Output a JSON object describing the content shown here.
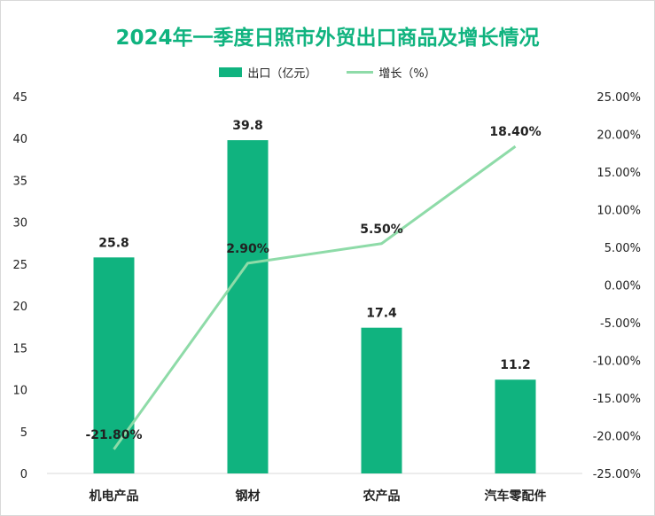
{
  "chart_data": {
    "type": "bar",
    "title": "2024年一季度日照市外贸出口商品及增长情况",
    "categories": [
      "机电产品",
      "钢材",
      "农产品",
      "汽车零配件"
    ],
    "series": [
      {
        "name": "出口（亿元）",
        "type": "bar",
        "axis": "left",
        "values": [
          25.8,
          39.8,
          17.4,
          11.2
        ],
        "labels": [
          "25.8",
          "39.8",
          "17.4",
          "11.2"
        ],
        "color": "#10b37f"
      },
      {
        "name": "增长（%）",
        "type": "line",
        "axis": "right",
        "values": [
          -21.8,
          2.9,
          5.5,
          18.4
        ],
        "labels": [
          "-21.80%",
          "2.90%",
          "5.50%",
          "18.40%"
        ],
        "color": "#8edba8"
      }
    ],
    "y_left": {
      "lim": [
        0,
        45
      ],
      "ticks": [
        "0",
        "5",
        "10",
        "15",
        "20",
        "25",
        "30",
        "35",
        "40",
        "45"
      ]
    },
    "y_right": {
      "lim": [
        -25,
        25
      ],
      "ticks": [
        "-25.00%",
        "-20.00%",
        "-15.00%",
        "-10.00%",
        "-5.00%",
        "0.00%",
        "5.00%",
        "10.00%",
        "15.00%",
        "20.00%",
        "25.00%"
      ]
    },
    "legend": "top-center",
    "grid": false
  }
}
